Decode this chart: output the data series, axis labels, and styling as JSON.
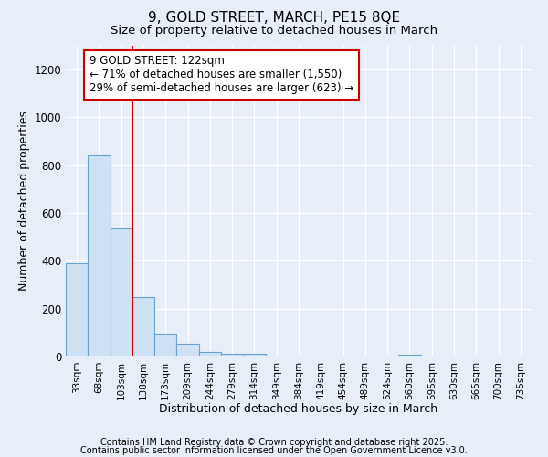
{
  "title1": "9, GOLD STREET, MARCH, PE15 8QE",
  "title2": "Size of property relative to detached houses in March",
  "xlabel": "Distribution of detached houses by size in March",
  "ylabel": "Number of detached properties",
  "categories": [
    "33sqm",
    "68sqm",
    "103sqm",
    "138sqm",
    "173sqm",
    "209sqm",
    "244sqm",
    "279sqm",
    "314sqm",
    "349sqm",
    "384sqm",
    "419sqm",
    "454sqm",
    "489sqm",
    "524sqm",
    "560sqm",
    "595sqm",
    "630sqm",
    "665sqm",
    "700sqm",
    "735sqm"
  ],
  "values": [
    390,
    840,
    535,
    248,
    97,
    52,
    18,
    13,
    10,
    0,
    0,
    0,
    0,
    0,
    0,
    8,
    0,
    0,
    0,
    0,
    0
  ],
  "bar_color": "#cfe2f3",
  "bar_edge_color": "#6aa3cc",
  "background_color": "#e8eef8",
  "grid_color": "#ffffff",
  "vline_x": 2.5,
  "vline_color": "#cc0000",
  "annotation_text": "9 GOLD STREET: 122sqm\n← 71% of detached houses are smaller (1,550)\n29% of semi-detached houses are larger (623) →",
  "annotation_box_color": "white",
  "annotation_box_edge": "#cc0000",
  "ylim": [
    0,
    1300
  ],
  "yticks": [
    0,
    200,
    400,
    600,
    800,
    1000,
    1200
  ],
  "footer1": "Contains HM Land Registry data © Crown copyright and database right 2025.",
  "footer2": "Contains public sector information licensed under the Open Government Licence v3.0."
}
